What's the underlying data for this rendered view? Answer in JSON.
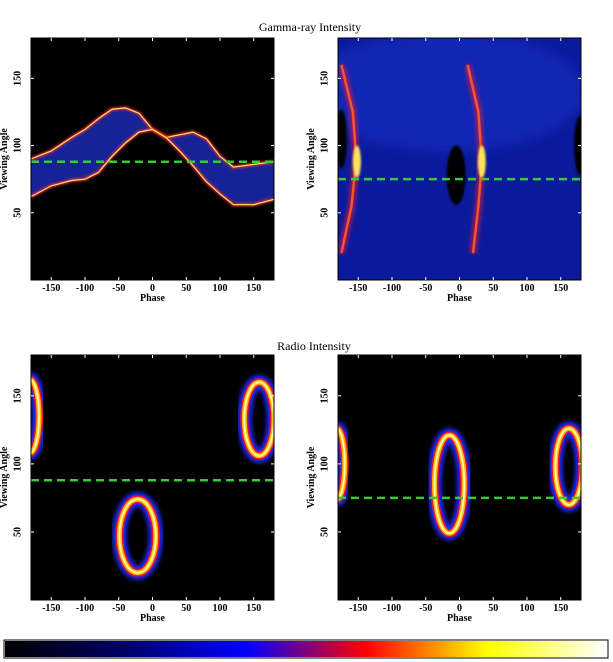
{
  "titles": {
    "gamma": "Gamma-ray   Intensity",
    "radio": "Radio   Intensity"
  },
  "colorbar": {
    "colormap": "black-blue-red-yellow-white",
    "stops": [
      "#000000",
      "#000066",
      "#0000ff",
      "#ff0000",
      "#ffff00",
      "#ffffff"
    ]
  },
  "colors": {
    "plot_background": "#000000",
    "dashed_line": "#33cc33"
  },
  "chart_data": [
    {
      "type": "heatmap",
      "panel": "gamma-left",
      "title": "Gamma-ray   Intensity",
      "xlabel": "Phase",
      "ylabel": "Viewing Angle",
      "xlim": [
        -180,
        180
      ],
      "ylim": [
        0,
        180
      ],
      "xticks": [
        -150,
        -100,
        -50,
        0,
        50,
        100,
        150
      ],
      "yticks": [
        50,
        100,
        150
      ],
      "dashed_line_y": 88,
      "upper_edge": {
        "x": [
          -180,
          -150,
          -120,
          -100,
          -80,
          -60,
          -40,
          -20,
          0,
          20,
          40,
          60,
          80,
          100,
          120,
          150,
          180
        ],
        "y": [
          90,
          96,
          106,
          112,
          120,
          127,
          128,
          124,
          112,
          106,
          108,
          110,
          105,
          92,
          84,
          86,
          88
        ]
      },
      "lower_edge": {
        "x": [
          -180,
          -150,
          -120,
          -100,
          -80,
          -60,
          -40,
          -20,
          0,
          20,
          40,
          60,
          80,
          100,
          120,
          150,
          180
        ],
        "y": [
          62,
          70,
          74,
          75,
          80,
          92,
          102,
          110,
          112,
          106,
          96,
          85,
          73,
          64,
          56,
          56,
          60
        ]
      }
    },
    {
      "type": "heatmap",
      "panel": "gamma-right",
      "title": "Gamma-ray   Intensity",
      "xlabel": "Phase",
      "ylabel": "Viewing Angle",
      "xlim": [
        -180,
        180
      ],
      "ylim": [
        0,
        180
      ],
      "xticks": [
        -150,
        -100,
        -50,
        0,
        50,
        100,
        150
      ],
      "yticks": [
        50,
        100,
        150
      ],
      "dashed_line_y": 75,
      "peaks_phase": [
        -155,
        30
      ],
      "caustic_arcs": [
        {
          "x": [
            -175,
            -160,
            -153,
            -158,
            -175
          ],
          "y": [
            20,
            55,
            90,
            125,
            160
          ]
        },
        {
          "x": [
            20,
            28,
            33,
            28,
            12
          ],
          "y": [
            20,
            55,
            88,
            125,
            160
          ]
        }
      ],
      "dark_holes": [
        {
          "cx": -175,
          "cy": 105,
          "rx": 8,
          "ry": 22
        },
        {
          "cx": -5,
          "cy": 78,
          "rx": 14,
          "ry": 22
        },
        {
          "cx": 178,
          "cy": 100,
          "rx": 8,
          "ry": 22
        }
      ]
    },
    {
      "type": "heatmap",
      "panel": "radio-left",
      "title": "Radio   Intensity",
      "xlabel": "Phase",
      "ylabel": "Viewing Angle",
      "xlim": [
        -180,
        180
      ],
      "ylim": [
        0,
        180
      ],
      "xticks": [
        -150,
        -100,
        -50,
        0,
        50,
        100,
        150
      ],
      "yticks": [
        50,
        100,
        150
      ],
      "dashed_line_y": 88,
      "rings": [
        {
          "cx": -22,
          "cy": 47,
          "rx": 27,
          "ry": 27
        },
        {
          "cx": 158,
          "cy": 133,
          "rx": 22,
          "ry": 27
        },
        {
          "cx": -182,
          "cy": 135,
          "rx": 14,
          "ry": 27
        }
      ]
    },
    {
      "type": "heatmap",
      "panel": "radio-right",
      "title": "Radio   Intensity",
      "xlabel": "Phase",
      "ylabel": "Viewing Angle",
      "xlim": [
        -180,
        180
      ],
      "ylim": [
        0,
        180
      ],
      "xticks": [
        -150,
        -100,
        -50,
        0,
        50,
        100,
        150
      ],
      "yticks": [
        50,
        100,
        150
      ],
      "dashed_line_y": 75,
      "rings": [
        {
          "cx": -15,
          "cy": 85,
          "rx": 22,
          "ry": 36
        },
        {
          "cx": 162,
          "cy": 98,
          "rx": 20,
          "ry": 28
        },
        {
          "cx": -182,
          "cy": 100,
          "rx": 12,
          "ry": 26
        }
      ]
    }
  ]
}
